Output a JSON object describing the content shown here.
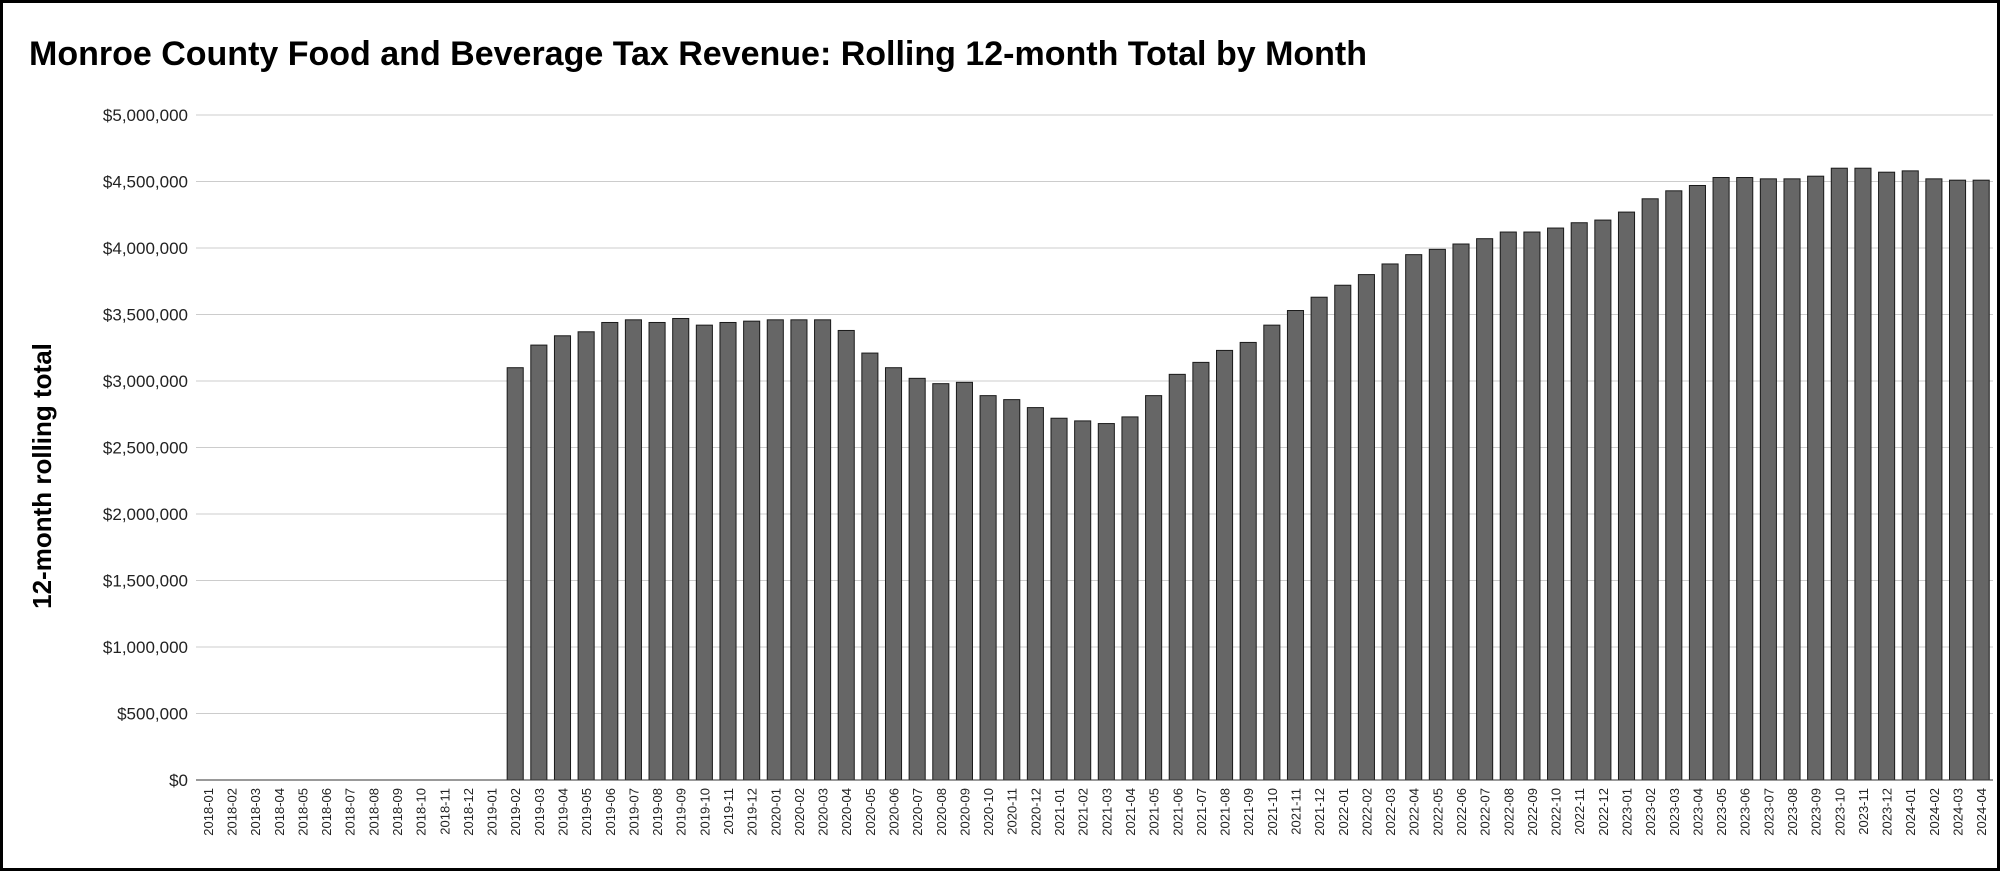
{
  "chart_data": {
    "type": "bar",
    "title": "Monroe County Food and Beverage Tax Revenue: Rolling 12-month Total by Month",
    "xlabel": "",
    "ylabel": "12-month rolling total",
    "ylim": [
      0,
      5000000
    ],
    "yticks": [
      0,
      500000,
      1000000,
      1500000,
      2000000,
      2500000,
      3000000,
      3500000,
      4000000,
      4500000,
      5000000
    ],
    "ytick_labels": [
      "$0",
      "$500,000",
      "$1,000,000",
      "$1,500,000",
      "$2,000,000",
      "$2,500,000",
      "$3,000,000",
      "$3,500,000",
      "$4,000,000",
      "$4,500,000",
      "$5,000,000"
    ],
    "grid": true,
    "bar_color": "#666666",
    "categories": [
      "2018-01",
      "2018-02",
      "2018-03",
      "2018-04",
      "2018-05",
      "2018-06",
      "2018-07",
      "2018-08",
      "2018-09",
      "2018-10",
      "2018-11",
      "2018-12",
      "2019-01",
      "2019-02",
      "2019-03",
      "2019-04",
      "2019-05",
      "2019-06",
      "2019-07",
      "2019-08",
      "2019-09",
      "2019-10",
      "2019-11",
      "2019-12",
      "2020-01",
      "2020-02",
      "2020-03",
      "2020-04",
      "2020-05",
      "2020-06",
      "2020-07",
      "2020-08",
      "2020-09",
      "2020-10",
      "2020-11",
      "2020-12",
      "2021-01",
      "2021-02",
      "2021-03",
      "2021-04",
      "2021-05",
      "2021-06",
      "2021-07",
      "2021-08",
      "2021-09",
      "2021-10",
      "2021-11",
      "2021-12",
      "2022-01",
      "2022-02",
      "2022-03",
      "2022-04",
      "2022-05",
      "2022-06",
      "2022-07",
      "2022-08",
      "2022-09",
      "2022-10",
      "2022-11",
      "2022-12",
      "2023-01",
      "2023-02",
      "2023-03",
      "2023-04",
      "2023-05",
      "2023-06",
      "2023-07",
      "2023-08",
      "2023-09",
      "2023-10",
      "2023-11",
      "2023-12",
      "2024-01",
      "2024-02",
      "2024-03",
      "2024-04"
    ],
    "values": [
      0,
      0,
      0,
      0,
      0,
      0,
      0,
      0,
      0,
      0,
      0,
      0,
      0,
      3100000,
      3270000,
      3340000,
      3370000,
      3440000,
      3460000,
      3440000,
      3470000,
      3420000,
      3440000,
      3450000,
      3460000,
      3460000,
      3460000,
      3380000,
      3210000,
      3100000,
      3020000,
      2980000,
      2990000,
      2890000,
      2860000,
      2800000,
      2720000,
      2700000,
      2680000,
      2730000,
      2890000,
      3050000,
      3140000,
      3230000,
      3290000,
      3420000,
      3530000,
      3630000,
      3720000,
      3800000,
      3880000,
      3950000,
      3990000,
      4030000,
      4070000,
      4120000,
      4120000,
      4150000,
      4190000,
      4210000,
      4270000,
      4370000,
      4430000,
      4470000,
      4530000,
      4530000,
      4520000,
      4520000,
      4540000,
      4600000,
      4600000,
      4570000,
      4580000,
      4520000,
      4510000,
      4510000
    ]
  }
}
